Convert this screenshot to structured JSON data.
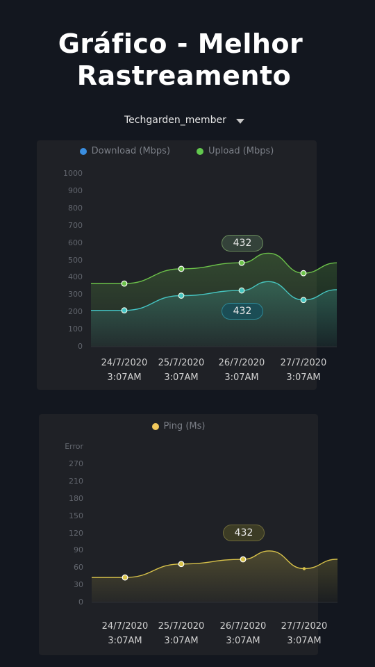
{
  "header": {
    "title_line1": "Gráfico - Melhor",
    "title_line2": "Rastreamento"
  },
  "account_selector": {
    "value": "Techgarden_member"
  },
  "speed_chart": {
    "legend": [
      {
        "label": "Download (Mbps)",
        "color": "#3a8ee0"
      },
      {
        "label": "Upload (Mbps)",
        "color": "#62c84e"
      }
    ],
    "y_ticks": [
      "1000",
      "900",
      "800",
      "700",
      "600",
      "500",
      "400",
      "300",
      "200",
      "100",
      "0"
    ],
    "x_ticks": [
      {
        "date": "24/7/2020",
        "time": "3:07AM"
      },
      {
        "date": "25/7/2020",
        "time": "3:07AM"
      },
      {
        "date": "26/7/2020",
        "time": "3:07AM"
      },
      {
        "date": "27/7/2020",
        "time": "3:07AM"
      }
    ],
    "tooltip_upload": "432",
    "tooltip_download": "432"
  },
  "ping_chart": {
    "legend": [
      {
        "label": "Ping (Ms)",
        "color": "#f2c95c"
      }
    ],
    "y_ticks": [
      "Error",
      "270",
      "210",
      "180",
      "150",
      "120",
      "90",
      "60",
      "30",
      "0"
    ],
    "x_ticks": [
      {
        "date": "24/7/2020",
        "time": "3:07AM"
      },
      {
        "date": "25/7/2020",
        "time": "3:07AM"
      },
      {
        "date": "26/7/2020",
        "time": "3:07AM"
      },
      {
        "date": "27/7/2020",
        "time": "3:07AM"
      }
    ],
    "tooltip_ping": "432"
  },
  "chart_data": [
    {
      "type": "area",
      "categories": [
        "24/7/2020 3:07AM",
        "25/7/2020 3:07AM",
        "26/7/2020 3:07AM",
        "27/7/2020 3:07AM"
      ],
      "ylim": [
        0,
        1000
      ],
      "series": [
        {
          "name": "Download (Mbps)",
          "values": [
            210,
            295,
            325,
            270
          ],
          "color": "#3fc6d8"
        },
        {
          "name": "Upload (Mbps)",
          "values": [
            365,
            450,
            485,
            425
          ],
          "color": "#6cc24a"
        }
      ]
    },
    {
      "type": "area",
      "categories": [
        "24/7/2020 3:07AM",
        "25/7/2020 3:07AM",
        "26/7/2020 3:07AM",
        "27/7/2020 3:07AM"
      ],
      "ylim": [
        0,
        300
      ],
      "series": [
        {
          "name": "Ping (Ms)",
          "values": [
            48,
            74,
            83,
            65
          ],
          "color": "#d9c34a"
        }
      ]
    }
  ]
}
